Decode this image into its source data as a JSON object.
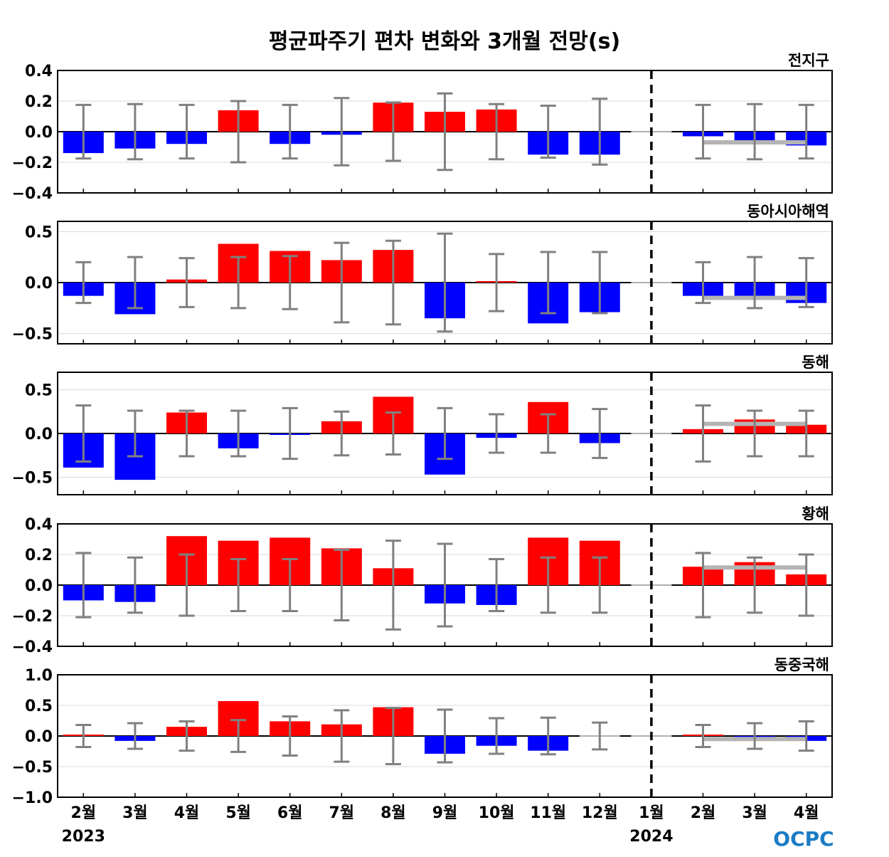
{
  "chart_data": {
    "title": "평균파주기 편차 변화와 3개월 전망(s)",
    "type": "bar",
    "categories": [
      "2월",
      "3월",
      "4월",
      "5월",
      "6월",
      "7월",
      "8월",
      "9월",
      "10월",
      "11월",
      "12월",
      "1월",
      "2월",
      "3월",
      "4월"
    ],
    "year_labels": [
      {
        "category_index": 0,
        "label": "2023"
      },
      {
        "category_index": 11,
        "label": "2024"
      }
    ],
    "forecast_divider_index": 11,
    "colors": {
      "positive": "#ff0000",
      "negative": "#0000ff",
      "zero": "#b0b0b0",
      "error_bar": "#808080",
      "forecast_mean": "#b4b4b4"
    },
    "logo": "OCPC",
    "grid": true,
    "panels": [
      {
        "name": "전지구",
        "ylim": [
          -0.4,
          0.4
        ],
        "yticks": [
          -0.4,
          -0.2,
          0.0,
          0.2,
          0.4
        ],
        "tick_labels": [
          "−0.4",
          "−0.2",
          "0.0",
          "0.2",
          "0.4"
        ],
        "values": [
          -0.14,
          -0.11,
          -0.08,
          0.14,
          -0.08,
          -0.02,
          0.19,
          0.13,
          0.145,
          -0.15,
          -0.15,
          0,
          -0.03,
          -0.07,
          -0.09
        ],
        "errors": [
          0.175,
          0.18,
          0.175,
          0.2,
          0.175,
          0.22,
          0.19,
          0.25,
          0.18,
          0.17,
          0.215,
          null,
          0.175,
          0.18,
          0.175
        ],
        "forecast_mean": -0.07
      },
      {
        "name": "동아시아해역",
        "ylim": [
          -0.6,
          0.6
        ],
        "yticks": [
          -0.5,
          0.0,
          0.5
        ],
        "tick_labels": [
          "−0.5",
          "0.0",
          "0.5"
        ],
        "values": [
          -0.13,
          -0.31,
          0.03,
          0.38,
          0.31,
          0.22,
          0.32,
          -0.35,
          0.01,
          -0.4,
          -0.29,
          0,
          -0.13,
          -0.14,
          -0.2
        ],
        "errors": [
          0.2,
          0.25,
          0.24,
          0.25,
          0.26,
          0.39,
          0.41,
          0.48,
          0.28,
          0.3,
          0.3,
          null,
          0.2,
          0.25,
          0.24
        ],
        "forecast_mean": -0.15
      },
      {
        "name": "동해",
        "ylim": [
          -0.7,
          0.7
        ],
        "yticks": [
          -0.5,
          0.0,
          0.5
        ],
        "tick_labels": [
          "−0.5",
          "0.0",
          "0.5"
        ],
        "values": [
          -0.39,
          -0.53,
          0.24,
          -0.17,
          -0.01,
          0.14,
          0.42,
          -0.47,
          -0.05,
          0.36,
          -0.11,
          0,
          0.05,
          0.16,
          0.1
        ],
        "errors": [
          0.32,
          0.26,
          0.26,
          0.26,
          0.29,
          0.25,
          0.24,
          0.29,
          0.22,
          0.22,
          0.28,
          null,
          0.32,
          0.26,
          0.26
        ],
        "forecast_mean": 0.11
      },
      {
        "name": "황해",
        "ylim": [
          -0.4,
          0.4
        ],
        "yticks": [
          -0.4,
          -0.2,
          0.0,
          0.2,
          0.4
        ],
        "tick_labels": [
          "−0.4",
          "−0.2",
          "0.0",
          "0.2",
          "0.4"
        ],
        "values": [
          -0.1,
          -0.11,
          0.32,
          0.29,
          0.31,
          0.24,
          0.11,
          -0.12,
          -0.13,
          0.31,
          0.29,
          0,
          0.12,
          0.15,
          0.07
        ],
        "errors": [
          0.21,
          0.18,
          0.2,
          0.17,
          0.17,
          0.23,
          0.29,
          0.27,
          0.17,
          0.18,
          0.18,
          null,
          0.21,
          0.18,
          0.2
        ],
        "forecast_mean": 0.115
      },
      {
        "name": "동중국해",
        "ylim": [
          -1.0,
          1.0
        ],
        "yticks": [
          -1.0,
          -0.5,
          0.0,
          0.5,
          1.0
        ],
        "tick_labels": [
          "−1.0",
          "−0.5",
          "0.0",
          "0.5",
          "1.0"
        ],
        "values": [
          0.01,
          -0.08,
          0.15,
          0.57,
          0.24,
          0.19,
          0.47,
          -0.29,
          -0.16,
          -0.24,
          0,
          0,
          0.01,
          -0.02,
          -0.08
        ],
        "errors": [
          0.18,
          0.21,
          0.24,
          0.26,
          0.32,
          0.42,
          0.46,
          0.43,
          0.29,
          0.3,
          0.22,
          null,
          0.18,
          0.21,
          0.24
        ],
        "forecast_mean": -0.05
      }
    ]
  }
}
